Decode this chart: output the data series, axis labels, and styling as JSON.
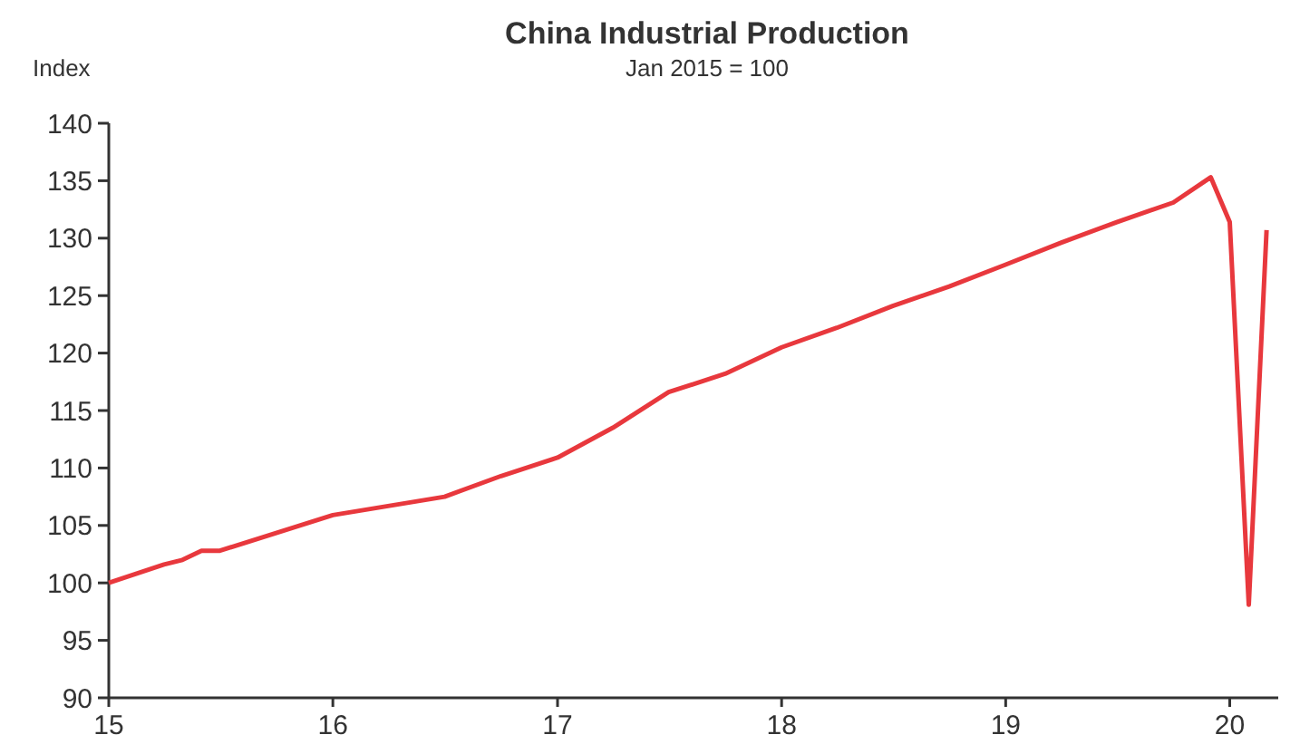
{
  "chart_data": {
    "type": "line",
    "title": "China Industrial Production",
    "subtitle": "Jan 2015 = 100",
    "ylabel": "Index",
    "x": [
      "2015-01",
      "2015-04",
      "2015-05",
      "2015-06",
      "2015-07",
      "2016-01",
      "2016-07",
      "2016-10",
      "2017-01",
      "2017-04",
      "2017-07",
      "2017-10",
      "2018-01",
      "2018-04",
      "2018-07",
      "2018-10",
      "2019-01",
      "2019-04",
      "2019-07",
      "2019-10",
      "2019-12",
      "2020-01",
      "2020-02",
      "2020-03"
    ],
    "series": [
      {
        "color": "#e8383d",
        "values": [
          100.0,
          101.6,
          102.0,
          102.8,
          102.8,
          105.9,
          107.5,
          109.3,
          110.9,
          113.5,
          116.6,
          118.2,
          120.5,
          122.2,
          124.1,
          125.8,
          127.7,
          129.6,
          131.4,
          133.1,
          135.3,
          131.4,
          98.1,
          130.7
        ]
      }
    ],
    "xlim": [
      "2015-01",
      "2020-03-20"
    ],
    "xticks": [
      {
        "value": "2015-01",
        "label": "15"
      },
      {
        "value": "2016-01",
        "label": "16"
      },
      {
        "value": "2017-01",
        "label": "17"
      },
      {
        "value": "2018-01",
        "label": "18"
      },
      {
        "value": "2019-01",
        "label": "19"
      },
      {
        "value": "2020-01",
        "label": "20"
      }
    ],
    "ylim": [
      90,
      140
    ],
    "yticks": [
      90,
      95,
      100,
      105,
      110,
      115,
      120,
      125,
      130,
      135,
      140
    ],
    "grid": false,
    "marker": "none",
    "line_style": "solid"
  }
}
